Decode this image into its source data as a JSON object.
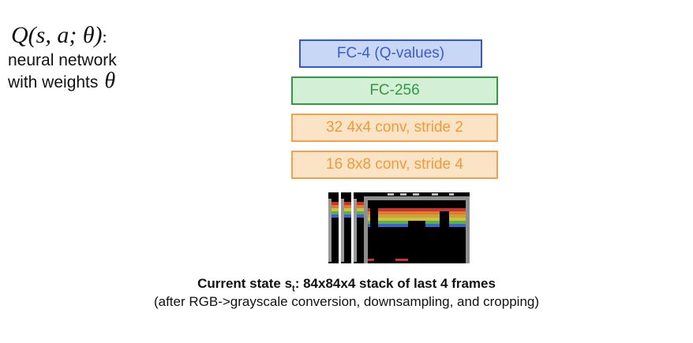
{
  "q_label": {
    "formula": "Q(s, a; θ)",
    "colon": ":",
    "line1": "neural network",
    "line2": "with weights",
    "theta": "θ"
  },
  "layers": [
    {
      "label": "FC-4 (Q-values)",
      "color": "#3a5bd0"
    },
    {
      "label": "FC-256",
      "color": "#2f9a3e"
    },
    {
      "label": "32 4x4 conv, stride 2",
      "color": "#f09a3a"
    },
    {
      "label": "16 8x8 conv, stride 4",
      "color": "#f09a3a"
    }
  ],
  "caption": {
    "line1_pre": "Current state s",
    "line1_sub": "t",
    "line1_post": ": 84x84x4 stack of last 4 frames",
    "line2": "(after RGB->grayscale conversion, downsampling, and cropping)"
  }
}
